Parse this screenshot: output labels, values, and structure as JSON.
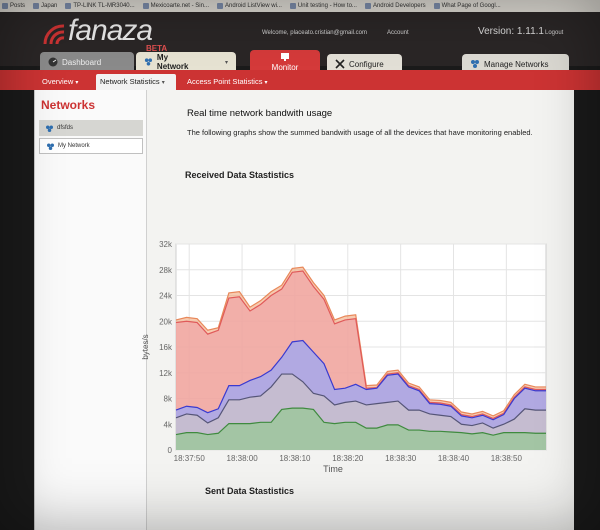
{
  "browser": {
    "bookmarks": [
      "Posts",
      "Japan",
      "TP-LINK TL-MR3040...",
      "Mexicoarte.net - Sin...",
      "Android ListView wi...",
      "Unit testing - How to...",
      "Android Developers",
      "What Page of Googl..."
    ]
  },
  "header": {
    "brand": "fanaza",
    "brand_tag": "BETA",
    "welcome": "Welcome, placeato.cristian@gmail.com",
    "account": "Account",
    "version": "Version: 1.11.1",
    "logout": "Logout"
  },
  "tabs": {
    "dashboard": "Dashboard",
    "my_network": "My Network",
    "monitor": "Monitor",
    "configure": "Configure",
    "manage": "Manage Networks"
  },
  "subnav": {
    "overview": "Overview",
    "network_statistics": "Network Statistics",
    "ap_statistics": "Access Point Statistics"
  },
  "sidebar": {
    "title": "Networks",
    "items": [
      {
        "label": "dfsfds"
      },
      {
        "label": "My Network"
      }
    ]
  },
  "main": {
    "title": "Real time network bandwith usage",
    "description": "The following graphs show the summed bandwith usage of all the devices that have monitoring enabled.",
    "received_heading": "Received Data Stastistics",
    "sent_heading": "Sent Data Stastistics"
  },
  "colors": {
    "brand_red": "#cc3333",
    "series_orange": "#f0a070",
    "series_red": "#f0a8a8",
    "series_blue": "#a6a8ec",
    "series_gray": "#c9bfcc",
    "series_green": "#9ec59e"
  },
  "chart_data": {
    "type": "area",
    "xlabel": "Time",
    "ylabel": "bytes/s",
    "ylim": [
      0,
      32000
    ],
    "y_ticks": [
      "0",
      "4k",
      "8k",
      "12k",
      "16k",
      "20k",
      "24k",
      "28k",
      "32k"
    ],
    "x_ticks": [
      "18:37:50",
      "18:38:00",
      "18:38:10",
      "18:38:20",
      "18:38:30",
      "18:38:40",
      "18:38:50"
    ],
    "x_tick_values": [
      2.5,
      12.5,
      22.5,
      32.5,
      42.5,
      52.5,
      62.5
    ],
    "x": [
      0,
      2,
      4,
      6,
      8,
      10,
      12,
      14,
      16,
      18,
      20,
      22,
      24,
      26,
      28,
      30,
      32,
      34,
      36,
      38,
      40,
      42,
      44,
      46,
      48,
      50,
      52,
      54,
      56,
      58,
      60,
      62,
      64,
      66,
      68,
      70
    ],
    "series": [
      {
        "values": [
          20200,
          20600,
          20400,
          18600,
          19000,
          24400,
          24600,
          22200,
          23200,
          24600,
          25600,
          28200,
          28400,
          26000,
          24000,
          20200,
          20800,
          21000,
          10000,
          10100,
          12200,
          12400,
          10400,
          9800,
          7800,
          7700,
          7400,
          5900,
          5600,
          6000,
          5300,
          6100,
          8600,
          10200,
          9800,
          9800
        ]
      },
      {
        "values": [
          19800,
          20000,
          19800,
          18000,
          18600,
          23600,
          23800,
          21600,
          22600,
          24000,
          25000,
          27600,
          27800,
          25400,
          23400,
          19600,
          20200,
          20400,
          9600,
          9700,
          11800,
          12000,
          10000,
          9400,
          7400,
          7300,
          7000,
          5500,
          5200,
          5600,
          4900,
          5700,
          8200,
          9800,
          9400,
          9400
        ]
      },
      {
        "values": [
          6200,
          6800,
          6600,
          5800,
          6400,
          10000,
          10000,
          10800,
          11400,
          12400,
          14400,
          16800,
          17000,
          15200,
          13400,
          9400,
          9600,
          10200,
          9400,
          9600,
          11600,
          11800,
          9800,
          9200,
          7200,
          7100,
          6800,
          5300,
          5000,
          5400,
          4700,
          5500,
          8000,
          9600,
          9200,
          9200
        ]
      },
      {
        "values": [
          5000,
          5600,
          5400,
          4200,
          5000,
          7800,
          7800,
          8200,
          8400,
          9800,
          11800,
          11800,
          10600,
          8800,
          8400,
          7000,
          7400,
          7600,
          7000,
          7200,
          7400,
          7600,
          6200,
          6200,
          5600,
          5400,
          5200,
          4000,
          3800,
          4200,
          3400,
          4000,
          4800,
          6400,
          6200,
          6200
        ]
      },
      {
        "values": [
          2400,
          2700,
          2700,
          2400,
          2600,
          4100,
          4100,
          4100,
          4300,
          4300,
          6300,
          6500,
          6500,
          6300,
          4300,
          4100,
          4300,
          4300,
          3400,
          3400,
          3900,
          3900,
          3100,
          3100,
          2900,
          2900,
          2800,
          2700,
          2500,
          2700,
          2300,
          2700,
          2700,
          2700,
          2600,
          2600
        ]
      }
    ]
  }
}
